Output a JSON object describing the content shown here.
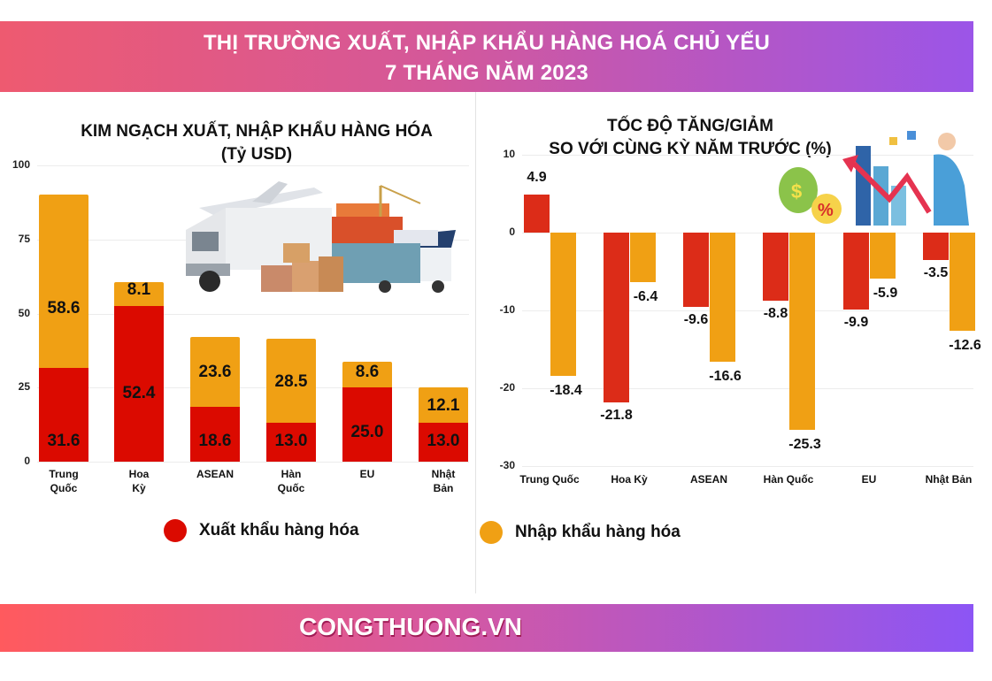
{
  "header": {
    "title_line1": "THỊ TRƯỜNG XUẤT, NHẬP KHẨU HÀNG HOÁ CHỦ YẾU",
    "title_line2": "7 THÁNG NĂM 2023"
  },
  "left_chart": {
    "title_line1": "KIM NGẠCH XUẤT, NHẬP KHẨU HÀNG HÓA",
    "title_line2": "(Tỷ USD)",
    "y_ticks": [
      "100",
      "75",
      "50",
      "25",
      "0"
    ],
    "categories": [
      {
        "line1": "Trung",
        "line2": "Quốc"
      },
      {
        "line1": "Hoa",
        "line2": "Kỳ"
      },
      {
        "line1": "ASEAN",
        "line2": ""
      },
      {
        "line1": "Hàn",
        "line2": "Quốc"
      },
      {
        "line1": "EU",
        "line2": ""
      },
      {
        "line1": "Nhật",
        "line2": "Bản"
      }
    ],
    "export_labels": [
      "31.6",
      "52.4",
      "18.6",
      "13.0",
      "25.0",
      "13.0"
    ],
    "import_labels": [
      "58.6",
      "8.1",
      "23.6",
      "28.5",
      "8.6",
      "12.1"
    ]
  },
  "right_chart": {
    "title_line1": "TỐC ĐỘ TĂNG/GIẢM",
    "title_line2": "SO VỚI CÙNG KỲ NĂM TRƯỚC (%)",
    "y_ticks": [
      "10",
      "0",
      "-10",
      "-20",
      "-30"
    ],
    "categories": [
      "Trung Quốc",
      "Hoa Kỳ",
      "ASEAN",
      "Hàn Quốc",
      "EU",
      "Nhật Bản"
    ],
    "export_labels": [
      "4.9",
      "-21.8",
      "-9.6",
      "-8.8",
      "-9.9",
      "-3.5"
    ],
    "import_labels": [
      "-18.4",
      "-6.4",
      "-16.6",
      "-25.3",
      "-5.9",
      "-12.6"
    ]
  },
  "legend": {
    "export_label": "Xuất khẩu hàng hóa",
    "import_label": "Nhập khẩu hàng hóa"
  },
  "footer": {
    "brand": "CONGTHUONG.VN"
  },
  "colors": {
    "export_left": "#db0a00",
    "import": "#f0a014",
    "export_right": "#dc2c18"
  },
  "chart_data": [
    {
      "type": "bar",
      "stacked": true,
      "title": "KIM NGẠCH XUẤT, NHẬP KHẨU HÀNG HÓA (Tỷ USD)",
      "categories": [
        "Trung Quốc",
        "Hoa Kỳ",
        "ASEAN",
        "Hàn Quốc",
        "EU",
        "Nhật Bản"
      ],
      "series": [
        {
          "name": "Xuất khẩu hàng hóa",
          "color": "#db0a00",
          "values": [
            31.6,
            52.4,
            18.6,
            13.0,
            25.0,
            13.0
          ]
        },
        {
          "name": "Nhập khẩu hàng hóa",
          "color": "#f0a014",
          "values": [
            58.6,
            8.1,
            23.6,
            28.5,
            8.6,
            12.1
          ]
        }
      ],
      "xlabel": "",
      "ylabel": "Tỷ USD",
      "ylim": [
        0,
        100
      ],
      "yticks": [
        0,
        25,
        50,
        75,
        100
      ],
      "grid": true,
      "legend_position": "bottom"
    },
    {
      "type": "bar",
      "stacked": false,
      "title": "TỐC ĐỘ TĂNG/GIẢM SO VỚI CÙNG KỲ NĂM TRƯỚC (%)",
      "categories": [
        "Trung Quốc",
        "Hoa Kỳ",
        "ASEAN",
        "Hàn Quốc",
        "EU",
        "Nhật Bản"
      ],
      "series": [
        {
          "name": "Xuất khẩu hàng hóa",
          "color": "#dc2c18",
          "values": [
            4.9,
            -21.8,
            -9.6,
            -8.8,
            -9.9,
            -3.5
          ]
        },
        {
          "name": "Nhập khẩu hàng hóa",
          "color": "#f0a014",
          "values": [
            -18.4,
            -6.4,
            -16.6,
            -25.3,
            -5.9,
            -12.6
          ]
        }
      ],
      "xlabel": "",
      "ylabel": "%",
      "ylim": [
        -30,
        10
      ],
      "yticks": [
        -30,
        -20,
        -10,
        0,
        10
      ],
      "grid": true,
      "legend_position": "bottom"
    }
  ]
}
